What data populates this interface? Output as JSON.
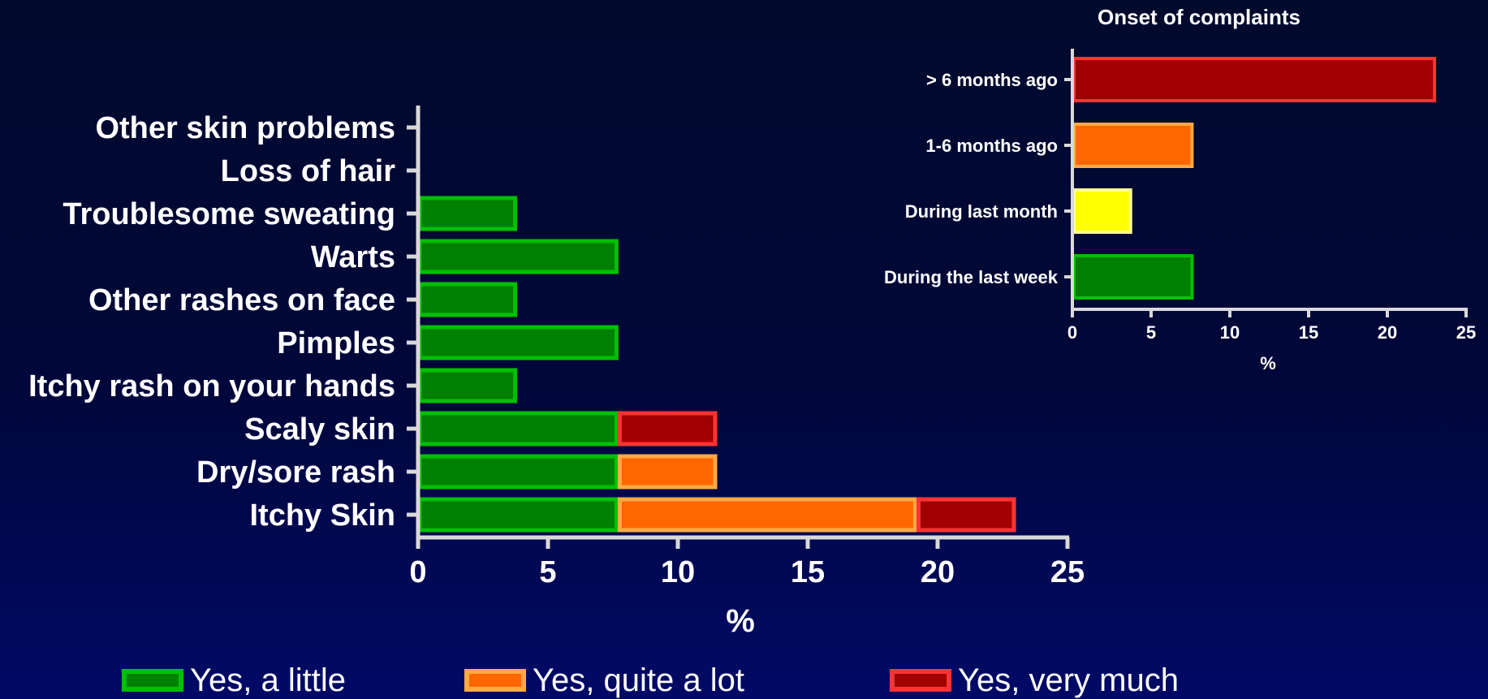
{
  "colors": {
    "a_little_fill": "#008000",
    "a_little_border": "#00c000",
    "quite_a_lot_fill": "#ff6600",
    "quite_a_lot_border": "#ffaa44",
    "very_much_fill": "#a00000",
    "very_much_border": "#ff3333",
    "axis": "#d9d9d9",
    "yellow_fill": "#ffff00",
    "yellow_border": "#ffff99"
  },
  "legend": [
    {
      "label": "Yes, a little",
      "key": "a_little"
    },
    {
      "label": "Yes, quite a lot",
      "key": "quite_a_lot"
    },
    {
      "label": "Yes, very much",
      "key": "very_much"
    }
  ],
  "chart_data": [
    {
      "type": "bar",
      "orientation": "horizontal",
      "stacked": true,
      "title": "",
      "xlabel": "%",
      "ylabel": "",
      "xlim": [
        0,
        25
      ],
      "xticks": [
        "0",
        "5",
        "10",
        "15",
        "20",
        "25"
      ],
      "categories": [
        "Itchy Skin",
        "Dry/sore rash",
        "Scaly skin",
        "Itchy rash on your hands",
        "Pimples",
        "Other rashes on face",
        "Warts",
        "Troublesome sweating",
        "Loss of hair",
        "Other skin problems"
      ],
      "series": [
        {
          "name": "Yes, a little",
          "key": "a_little",
          "values": [
            7.7,
            7.7,
            7.7,
            3.8,
            7.7,
            3.8,
            7.7,
            3.8,
            0,
            0
          ]
        },
        {
          "name": "Yes, quite a lot",
          "key": "quite_a_lot",
          "values": [
            11.5,
            3.8,
            0,
            0,
            0,
            0,
            0,
            0,
            0,
            0
          ]
        },
        {
          "name": "Yes, very much",
          "key": "very_much",
          "values": [
            3.8,
            0,
            3.8,
            0,
            0,
            0,
            0,
            0,
            0,
            0
          ]
        }
      ],
      "grid": false,
      "legend_position": "bottom"
    },
    {
      "type": "bar",
      "orientation": "horizontal",
      "stacked": false,
      "title": "Onset of complaints",
      "xlabel": "%",
      "ylabel": "",
      "xlim": [
        0,
        25
      ],
      "xticks": [
        "0",
        "5",
        "10",
        "15",
        "20",
        "25"
      ],
      "categories": [
        "During the last week",
        "During last month",
        "1-6 months ago",
        "> 6 months ago"
      ],
      "values": [
        7.7,
        3.8,
        7.7,
        23.1
      ],
      "bar_color_keys": [
        "a_little",
        "yellow",
        "quite_a_lot",
        "very_much"
      ],
      "grid": false
    }
  ]
}
